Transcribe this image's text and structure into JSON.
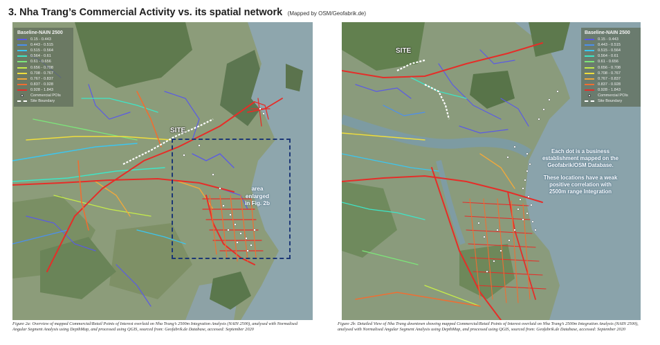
{
  "header": {
    "title": "3.  Nha Trang’s Commercial Activity vs. its spatial network",
    "subtitle": "(Mapped by OSM/Geofabrik.de)"
  },
  "legend": {
    "title": "Baseline-NAIN 2500",
    "ranges": [
      {
        "label": "0.15 - 0.443",
        "color": "#5a5ae6"
      },
      {
        "label": "0.443 - 0.515",
        "color": "#4b8ff0"
      },
      {
        "label": "0.515 - 0.564",
        "color": "#3cc6f0"
      },
      {
        "label": "0.564 - 0.61",
        "color": "#3ee6c8"
      },
      {
        "label": "0.61 - 0.656",
        "color": "#7de67a"
      },
      {
        "label": "0.656 - 0.708",
        "color": "#c6ec4a"
      },
      {
        "label": "0.708 - 0.767",
        "color": "#f0de3c"
      },
      {
        "label": "0.767 - 0.837",
        "color": "#f0a83c"
      },
      {
        "label": "0.837 - 0.928",
        "color": "#f06e32"
      },
      {
        "label": "0.928 - 1.843",
        "color": "#e62d28"
      }
    ],
    "poi_label": "Commercial POIs",
    "boundary_label": "Site Boundary"
  },
  "map_a": {
    "site_label": "SITE",
    "enlarge_label": [
      "area",
      "enlarged",
      "in Fig. 2b"
    ]
  },
  "map_b": {
    "site_label": "SITE",
    "note_1": [
      "Each dot is a business",
      "establishment  mapped on the",
      "Geofabrik/OSM Database."
    ],
    "note_2": [
      "These locations have a weak",
      "positive correlation with",
      "2500m range Integration"
    ]
  },
  "captions": {
    "fig_a": "Figure 2a: Overview of mapped Commercial/Retail Points of Interest overlaid on Nha Trang’s 2500m Integration Analysis (NAIN 2500), analysed with Normalised Angular Segment Analysis using DepthMap, and processed using QGIS, sourced from: Geofabrik.de Database,  accessed: September 2020",
    "fig_b": "Figure 2b: Detailed View of Nha Trang downtown showing mapped Commercial/Retail Points of Interest overlaid on Nha Trang’s 2500m Integration Analysis (NAIN 2500), analysed with Normalised Angular Segment Analysis using DepthMap, and processed using QGIS, sourced from: Geofabrik.de Database,  accessed: September 2020"
  }
}
